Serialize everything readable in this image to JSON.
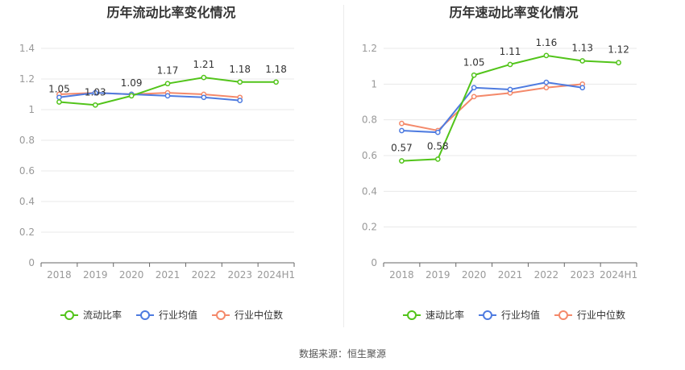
{
  "source": "数据来源：恒生聚源",
  "colors": {
    "series1": "#52c41a",
    "series2": "#4e7be0",
    "series3": "#f4896a",
    "axis": "#666666",
    "grid": "#e8e8e8",
    "tick_text": "#999999",
    "label_text": "#333333"
  },
  "chart_data": [
    {
      "type": "line",
      "title": "历年流动比率变化情况",
      "categories": [
        "2018",
        "2019",
        "2020",
        "2021",
        "2022",
        "2023",
        "2024H1"
      ],
      "ylim": [
        0,
        1.4
      ],
      "yticks": [
        "0",
        "0.2",
        "0.4",
        "0.6",
        "0.8",
        "1",
        "1.2",
        "1.4"
      ],
      "grid": true,
      "legend_position": "bottom-center",
      "series": [
        {
          "name": "流动比率",
          "values": [
            1.05,
            1.03,
            1.09,
            1.17,
            1.21,
            1.18,
            1.18
          ],
          "labels": [
            "1.05",
            "1.03",
            "1.09",
            "1.17",
            "1.21",
            "1.18",
            "1.18"
          ]
        },
        {
          "name": "行业均值",
          "values": [
            1.08,
            1.11,
            1.1,
            1.09,
            1.08,
            1.06,
            null
          ]
        },
        {
          "name": "行业中位数",
          "values": [
            1.1,
            1.11,
            1.1,
            1.11,
            1.1,
            1.08,
            null
          ]
        }
      ]
    },
    {
      "type": "line",
      "title": "历年速动比率变化情况",
      "categories": [
        "2018",
        "2019",
        "2020",
        "2021",
        "2022",
        "2023",
        "2024H1"
      ],
      "ylim": [
        0,
        1.2
      ],
      "yticks": [
        "0",
        "0.2",
        "0.4",
        "0.6",
        "0.8",
        "1",
        "1.2"
      ],
      "grid": true,
      "legend_position": "bottom-center",
      "series": [
        {
          "name": "速动比率",
          "values": [
            0.57,
            0.58,
            1.05,
            1.11,
            1.16,
            1.13,
            1.12
          ],
          "labels": [
            "0.57",
            "0.58",
            "1.05",
            "1.11",
            "1.16",
            "1.13",
            "1.12"
          ]
        },
        {
          "name": "行业均值",
          "values": [
            0.74,
            0.73,
            0.98,
            0.97,
            1.01,
            0.98,
            null
          ]
        },
        {
          "name": "行业中位数",
          "values": [
            0.78,
            0.74,
            0.93,
            0.95,
            0.98,
            1.0,
            null
          ]
        }
      ]
    }
  ]
}
